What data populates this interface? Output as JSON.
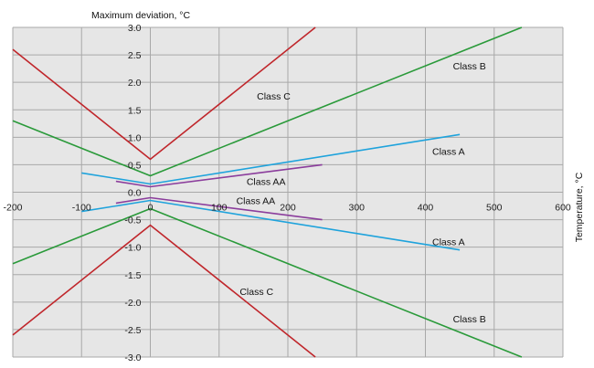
{
  "chart_data": {
    "type": "line",
    "title": "",
    "ylabel": "Maximum deviation, °C",
    "xlabel": "Temperature, °C",
    "xlim": [
      -200,
      600
    ],
    "ylim": [
      -3.0,
      3.0
    ],
    "x_ticks": [
      -200,
      -100,
      0,
      100,
      200,
      300,
      400,
      500,
      600
    ],
    "x_tick_labels": [
      "-200",
      "-100",
      "0",
      "100",
      "200",
      "300",
      "400",
      "500",
      "600"
    ],
    "y_ticks": [
      3.0,
      2.5,
      2.0,
      1.5,
      1.0,
      0.5,
      0.0,
      -0.5,
      -1.0,
      -1.5,
      -2.0,
      -2.5,
      -3.0
    ],
    "y_tick_labels": [
      "3.0",
      "2.5",
      "2.0",
      "1.5",
      "1.0",
      "0.5",
      "0.0",
      "-0.5",
      "-1.0",
      "-1.5",
      "-2.0",
      "-2.5",
      "-3.0"
    ],
    "grid": true,
    "background": "#e6e6e6",
    "series": [
      {
        "name": "Class C",
        "color": "#c0262b",
        "x": [
          -200,
          0,
          240
        ],
        "y": [
          2.6,
          0.6,
          3.0
        ]
      },
      {
        "name": "Class C",
        "color": "#c0262b",
        "x": [
          -200,
          0,
          240
        ],
        "y": [
          -2.6,
          -0.6,
          -3.0
        ]
      },
      {
        "name": "Class B",
        "color": "#2a9a3a",
        "x": [
          -200,
          0,
          540
        ],
        "y": [
          1.3,
          0.3,
          3.0
        ]
      },
      {
        "name": "Class B",
        "color": "#2a9a3a",
        "x": [
          -200,
          0,
          540
        ],
        "y": [
          -1.3,
          -0.3,
          -3.0
        ]
      },
      {
        "name": "Class A",
        "color": "#1fa3dc",
        "x": [
          -100,
          0,
          450
        ],
        "y": [
          0.35,
          0.15,
          1.05
        ]
      },
      {
        "name": "Class A",
        "color": "#1fa3dc",
        "x": [
          -100,
          0,
          450
        ],
        "y": [
          -0.35,
          -0.15,
          -1.05
        ]
      },
      {
        "name": "Class AA",
        "color": "#8b3d9c",
        "x": [
          -50,
          0,
          250
        ],
        "y": [
          0.2,
          0.1,
          0.5
        ]
      },
      {
        "name": "Class AA",
        "color": "#8b3d9c",
        "x": [
          -50,
          0,
          250
        ],
        "y": [
          -0.2,
          -0.1,
          -0.5
        ]
      }
    ],
    "annotations": [
      {
        "text": "Class C",
        "x": 155,
        "y": 1.75
      },
      {
        "text": "Class B",
        "x": 440,
        "y": 2.3
      },
      {
        "text": "Class A",
        "x": 410,
        "y": 0.75
      },
      {
        "text": "Class AA",
        "x": 140,
        "y": 0.2
      },
      {
        "text": "Class AA",
        "x": 125,
        "y": -0.15
      },
      {
        "text": "Class A",
        "x": 410,
        "y": -0.9
      },
      {
        "text": "Class C",
        "x": 130,
        "y": -1.8
      },
      {
        "text": "Class B",
        "x": 440,
        "y": -2.3
      }
    ]
  }
}
